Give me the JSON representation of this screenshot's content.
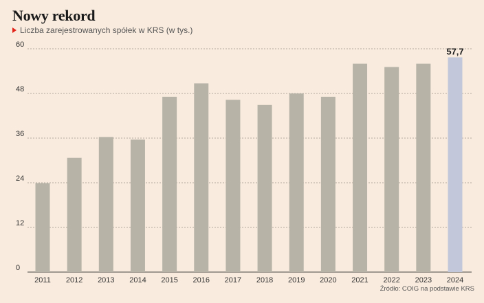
{
  "title": "Nowy rekord",
  "subtitle": "Liczba zarejestrowanych spółek w KRS (w tys.)",
  "source": "Źródło: COIG na podstawie KRS",
  "colors": {
    "background": "#f9ebde",
    "bar": "#b7b4a7",
    "highlight_bar": "#c2c8da",
    "marker": "#e2231a"
  },
  "chart_data": {
    "type": "bar",
    "categories": [
      "2011",
      "2012",
      "2013",
      "2014",
      "2015",
      "2016",
      "2017",
      "2018",
      "2019",
      "2020",
      "2021",
      "2022",
      "2023",
      "2024"
    ],
    "values": [
      23.9,
      30.7,
      36.3,
      35.6,
      47.1,
      50.7,
      46.3,
      44.9,
      48.0,
      47.1,
      56.0,
      55.1,
      56.0,
      57.7
    ],
    "highlight_index": 13,
    "data_labels": {
      "13": "57,7"
    },
    "yticks": [
      "0",
      "12",
      "24",
      "36",
      "48",
      "60"
    ],
    "ylim": [
      0,
      60
    ],
    "grid": true
  }
}
